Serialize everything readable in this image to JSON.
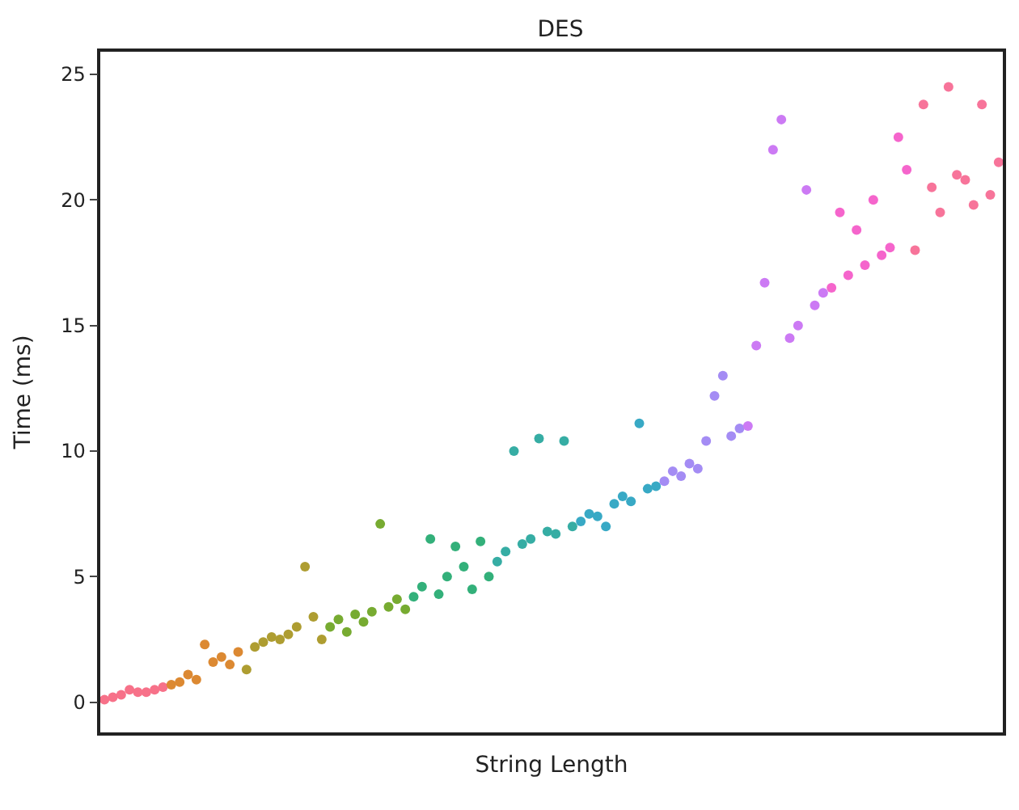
{
  "chart_data": {
    "type": "scatter",
    "title": "DES",
    "xlabel": "String Length",
    "ylabel": "Time (ms)",
    "categories": [
      null,
      null,
      null,
      null,
      null,
      null,
      null,
      null,
      null,
      null,
      null,
      null,
      null,
      null,
      null,
      null,
      null,
      null,
      null,
      null,
      null,
      null,
      null,
      null,
      null,
      null,
      null,
      null,
      null,
      null,
      null,
      null,
      null,
      null,
      null,
      null,
      null,
      null,
      null,
      null,
      null,
      null,
      null,
      null,
      null,
      null,
      null,
      null,
      null,
      null,
      null,
      null,
      null,
      null,
      null,
      null,
      null,
      null,
      null,
      null,
      null,
      null,
      null,
      null,
      null,
      null,
      null,
      null,
      null,
      null,
      null,
      null,
      null,
      null,
      null,
      null,
      null,
      null,
      null,
      null,
      null,
      null,
      null,
      null,
      null,
      null,
      null,
      null,
      null,
      null,
      null,
      null,
      null,
      null,
      null,
      null,
      null,
      null,
      null,
      null,
      null,
      null,
      null,
      null,
      null,
      null,
      null,
      null
    ],
    "values": [
      0.1,
      0.2,
      0.3,
      0.5,
      0.4,
      0.4,
      0.5,
      0.6,
      0.7,
      0.8,
      1.1,
      0.9,
      2.3,
      1.6,
      1.8,
      1.5,
      2.0,
      1.3,
      2.2,
      2.4,
      2.6,
      2.5,
      2.7,
      3.0,
      5.4,
      3.4,
      2.5,
      3.0,
      3.3,
      2.8,
      3.5,
      3.2,
      3.6,
      7.1,
      3.8,
      4.1,
      3.7,
      4.2,
      4.6,
      6.5,
      4.3,
      5.0,
      6.2,
      5.4,
      4.5,
      6.4,
      5.0,
      5.6,
      6.0,
      10.0,
      6.3,
      6.5,
      10.5,
      6.8,
      6.7,
      10.4,
      7.0,
      7.2,
      7.5,
      7.4,
      7.0,
      7.9,
      8.2,
      8.0,
      11.1,
      8.5,
      8.6,
      8.8,
      9.2,
      9.0,
      9.5,
      9.3,
      10.4,
      12.2,
      13.0,
      10.6,
      10.9,
      11.0,
      14.2,
      16.7,
      22.0,
      23.2,
      14.5,
      15.0,
      20.4,
      15.8,
      16.3,
      16.5,
      19.5,
      17.0,
      18.8,
      17.4,
      20.0,
      17.8,
      18.1,
      22.5,
      21.2,
      18.0,
      23.8,
      20.5,
      19.5,
      24.5,
      21.0,
      20.8,
      19.8,
      23.8,
      20.2,
      21.5
    ],
    "colors": [
      "#f77189",
      "#f77189",
      "#f77189",
      "#f77189",
      "#f77189",
      "#f77189",
      "#f77189",
      "#f77189",
      "#dc8932",
      "#dc8932",
      "#dc8932",
      "#dc8932",
      "#dc8932",
      "#dc8932",
      "#dc8932",
      "#dc8932",
      "#dc8932",
      "#ae9d31",
      "#ae9d31",
      "#ae9d31",
      "#ae9d31",
      "#ae9d31",
      "#ae9d31",
      "#ae9d31",
      "#ae9d31",
      "#ae9d31",
      "#ae9d31",
      "#77ab31",
      "#77ab31",
      "#77ab31",
      "#77ab31",
      "#77ab31",
      "#77ab31",
      "#77ab31",
      "#77ab31",
      "#77ab31",
      "#77ab31",
      "#33b07a",
      "#33b07a",
      "#33b07a",
      "#33b07a",
      "#33b07a",
      "#33b07a",
      "#33b07a",
      "#33b07a",
      "#33b07a",
      "#33b07a",
      "#36ada4",
      "#36ada4",
      "#36ada4",
      "#36ada4",
      "#36ada4",
      "#36ada4",
      "#36ada4",
      "#36ada4",
      "#36ada4",
      "#36ada4",
      "#38a9c5",
      "#38a9c5",
      "#38a9c5",
      "#38a9c5",
      "#38a9c5",
      "#38a9c5",
      "#38a9c5",
      "#38a9c5",
      "#38a9c5",
      "#38a9c5",
      "#a48cf4",
      "#a48cf4",
      "#a48cf4",
      "#a48cf4",
      "#a48cf4",
      "#a48cf4",
      "#a48cf4",
      "#a48cf4",
      "#a48cf4",
      "#a48cf4",
      "#cc7af4",
      "#cc7af4",
      "#cc7af4",
      "#cc7af4",
      "#cc7af4",
      "#cc7af4",
      "#cc7af4",
      "#cc7af4",
      "#cc7af4",
      "#cc7af4",
      "#f565cc",
      "#f565cc",
      "#f565cc",
      "#f565cc",
      "#f565cc",
      "#f565cc",
      "#f565cc",
      "#f565cc",
      "#f565cc",
      "#f565cc",
      "#f7749a",
      "#f7749a",
      "#f7749a",
      "#f7749a",
      "#f7749a",
      "#f7749a",
      "#f7749a",
      "#f7749a",
      "#f7749a",
      "#f7749a",
      "#f7749a"
    ],
    "ylim": [
      -1.2,
      25.9
    ],
    "yticks": [
      0,
      5,
      10,
      15,
      20,
      25
    ],
    "marker": "circle",
    "grid": false,
    "tick_labels": "y"
  }
}
